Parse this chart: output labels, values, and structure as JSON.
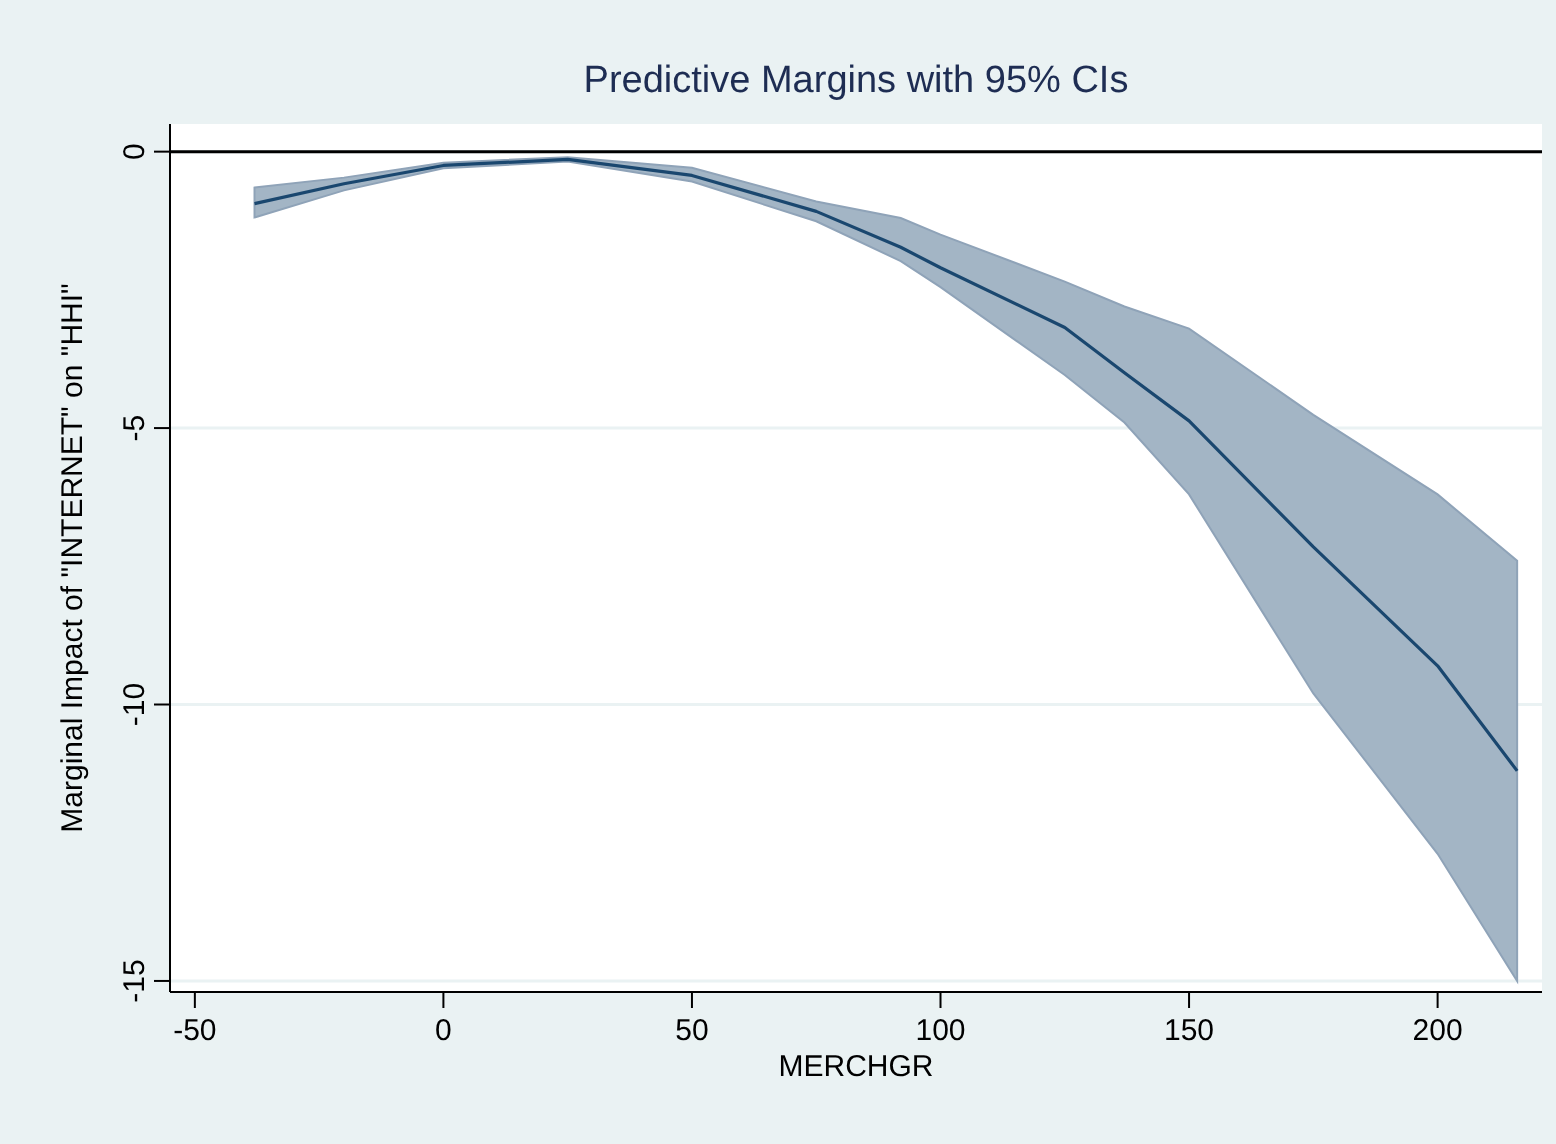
{
  "chart_data": {
    "type": "line",
    "title": "Predictive Margins with 95% CIs",
    "xlabel": "MERCHGR",
    "ylabel": "Marginal Impact of \"INTERNET\" on \"HHI\"",
    "x": [
      -38,
      -20,
      0,
      25,
      50,
      75,
      92,
      100,
      125,
      137,
      150,
      175,
      200,
      216
    ],
    "series": [
      {
        "color": "#1a476f",
        "values": [
          -0.94,
          -0.58,
          -0.25,
          -0.14,
          -0.43,
          -1.08,
          -1.73,
          -2.1,
          -3.18,
          -4.0,
          -4.87,
          -7.15,
          -9.3,
          -11.2
        ],
        "lower": [
          -1.19,
          -0.7,
          -0.3,
          -0.18,
          -0.54,
          -1.26,
          -1.98,
          -2.45,
          -4.04,
          -4.9,
          -6.2,
          -9.8,
          -12.7,
          -15.0
        ],
        "upper": [
          -0.65,
          -0.47,
          -0.2,
          -0.1,
          -0.29,
          -0.9,
          -1.2,
          -1.5,
          -2.35,
          -2.8,
          -3.2,
          -4.76,
          -6.2,
          -7.4
        ]
      }
    ],
    "xlim": [
      -55,
      221
    ],
    "ylim": [
      -15.2,
      0.5
    ],
    "xticks": [
      -50,
      0,
      50,
      100,
      150,
      200
    ],
    "yticks": [
      -15,
      -10,
      -5,
      0
    ],
    "grid": "y",
    "ref_lines": [
      {
        "axis": "y",
        "value": 0,
        "color": "#000000"
      }
    ],
    "marker": "none",
    "line_style": "solid"
  }
}
